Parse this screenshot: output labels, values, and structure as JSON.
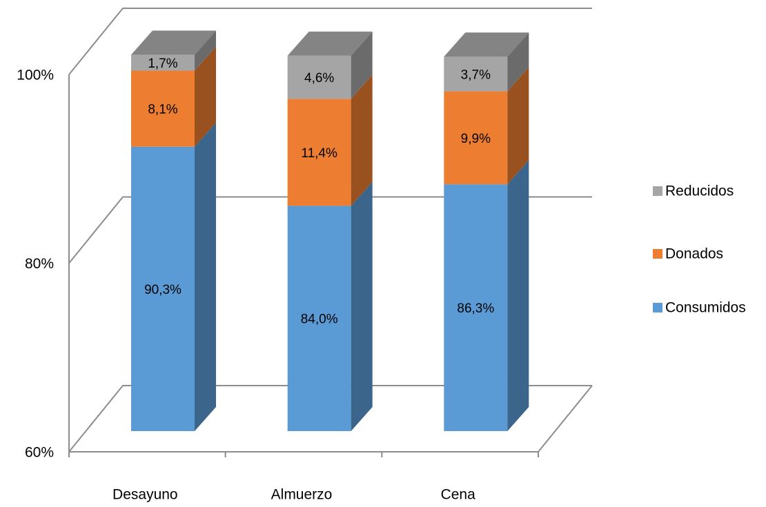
{
  "chart_data": {
    "type": "bar3d_stacked",
    "categories": [
      "Desayuno",
      "Almuerzo",
      "Cena"
    ],
    "series": [
      {
        "name": "Consumidos",
        "color": "#5b9bd5",
        "values": [
          90.3,
          84.0,
          86.3
        ],
        "value_labels": [
          "90,3%",
          "84,0%",
          "86,3%"
        ]
      },
      {
        "name": "Donados",
        "color": "#ed7d31",
        "values": [
          8.1,
          11.4,
          9.9
        ],
        "value_labels": [
          "8,1%",
          "11,4%",
          "9,9%"
        ]
      },
      {
        "name": "Reducidos",
        "color": "#a5a5a5",
        "values": [
          1.7,
          4.6,
          3.7
        ],
        "value_labels": [
          "1,7%",
          "4,6%",
          "3,7%"
        ]
      }
    ],
    "ylim": [
      60,
      100
    ],
    "yticks": [
      {
        "value": 60,
        "label": "60%"
      },
      {
        "value": 80,
        "label": "80%"
      },
      {
        "value": 100,
        "label": "100%"
      }
    ],
    "grid": true,
    "legend": "right"
  }
}
